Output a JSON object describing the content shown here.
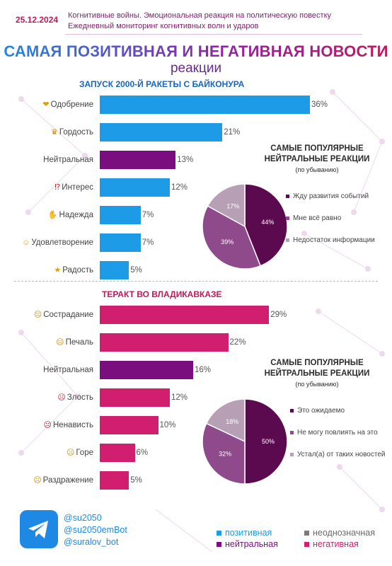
{
  "header": {
    "date": "25.12.2024",
    "line1": "Когнитивные войны. Эмоциональная реакция на политическую повестку",
    "line2": "Ежедневный мониторинг когнитивных волн и ударов"
  },
  "title": "САМАЯ ПОЗИТИВНАЯ И НЕГАТИВНАЯ НОВОСТИ",
  "subtitle": "реакции",
  "colors": {
    "positive": "#1e9be6",
    "neutral": "#7b0e7e",
    "negative": "#d11e6f",
    "ambiguous": "#7a7a7a"
  },
  "chart_data": [
    {
      "type": "bar",
      "orientation": "horizontal",
      "title": "ЗАПУСК 2000-Й РАКЕТЫ С БАЙКОНУРА",
      "categories": [
        "Одобрение",
        "Гордость",
        "Нейтральная",
        "Интерес",
        "Надежда",
        "Удовлетворение",
        "Радость"
      ],
      "icons": [
        "heart-hands-icon",
        "trophy-icon",
        "",
        "interrobang-icon",
        "praying-hands-icon",
        "smiling-face-icon",
        "starry-eyes-face-icon"
      ],
      "values": [
        36,
        21,
        13,
        12,
        7,
        7,
        5
      ],
      "value_labels": [
        "36%",
        "21%",
        "13%",
        "12%",
        "7%",
        "7%",
        "5%"
      ],
      "sentiment": [
        "positive",
        "positive",
        "neutral",
        "positive",
        "positive",
        "positive",
        "positive"
      ],
      "xlim": [
        0,
        36
      ]
    },
    {
      "type": "pie",
      "title": "САМЫЕ ПОПУЛЯРНЫЕ НЕЙТРАЛЬНЫЕ РЕАКЦИИ",
      "note": "(по убыванию)",
      "labels": [
        "Жду развития событий",
        "Мне всё равно",
        "Недостаток информации"
      ],
      "values": [
        44,
        39,
        17
      ],
      "value_labels": [
        "44%",
        "39%",
        "17%"
      ],
      "colors": [
        "#5c0a4f",
        "#8e4a8a",
        "#b7a0b6"
      ]
    },
    {
      "type": "bar",
      "orientation": "horizontal",
      "title": "ТЕРАКТ ВО ВЛАДИКАВКАЗЕ",
      "categories": [
        "Сострадание",
        "Печаль",
        "Нейтральная",
        "Злость",
        "Ненависть",
        "Горе",
        "Раздражение"
      ],
      "icons": [
        "sad-sweat-face-icon",
        "pensive-face-icon",
        "",
        "angry-face-icon",
        "cursing-face-icon",
        "sad-face-icon",
        "annoyed-face-icon"
      ],
      "values": [
        29,
        22,
        16,
        12,
        10,
        6,
        5
      ],
      "value_labels": [
        "29%",
        "22%",
        "16%",
        "12%",
        "10%",
        "6%",
        "5%"
      ],
      "sentiment": [
        "negative",
        "negative",
        "neutral",
        "negative",
        "negative",
        "negative",
        "negative"
      ],
      "xlim": [
        0,
        36
      ]
    },
    {
      "type": "pie",
      "title": "САМЫЕ ПОПУЛЯРНЫЕ НЕЙТРАЛЬНЫЕ РЕАКЦИИ",
      "note": "(по убыванию)",
      "labels": [
        "Это ожидаемо",
        "Не могу повлиять на это",
        "Устал(а) от таких новостей"
      ],
      "values": [
        50,
        32,
        18
      ],
      "value_labels": [
        "50%",
        "32%",
        "18%"
      ],
      "colors": [
        "#5c0a4f",
        "#8e4a8a",
        "#b7a0b6"
      ]
    }
  ],
  "footer": {
    "handles": [
      "@su2050",
      "@su2050emBot",
      "@suralov_bot"
    ],
    "legend": [
      {
        "label": "позитивная",
        "color": "#1e9be6"
      },
      {
        "label": "неоднозначная",
        "color": "#7a7a7a"
      },
      {
        "label": "нейтральная",
        "color": "#7b0e7e"
      },
      {
        "label": "негативная",
        "color": "#d11e6f"
      }
    ]
  }
}
